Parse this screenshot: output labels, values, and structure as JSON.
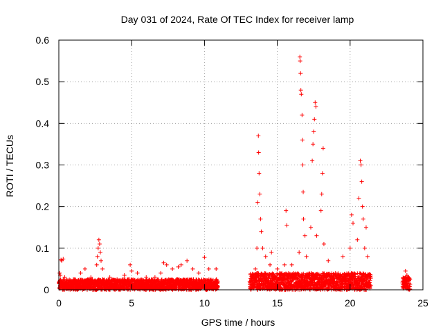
{
  "chart_data": {
    "type": "scatter",
    "title": "Day 031 of 2024, Rate Of TEC Index for receiver lamp",
    "xlabel": "GPS time / hours",
    "ylabel": "ROTI / TECUs",
    "xlim": [
      0,
      25
    ],
    "ylim": [
      0,
      0.6
    ],
    "xticks": [
      0,
      5,
      10,
      15,
      20,
      25
    ],
    "yticks": [
      0,
      0.1,
      0.2,
      0.3,
      0.4,
      0.5,
      0.6
    ],
    "xtick_labels": [
      "0",
      "5",
      "10",
      "15",
      "20",
      "25"
    ],
    "ytick_labels": [
      "0",
      "0.1",
      "0.2",
      "0.3",
      "0.4",
      "0.5",
      "0.6"
    ],
    "grid": true,
    "marker": "+",
    "color": "#ff0000",
    "series": [
      {
        "points": [
          [
            0.05,
            0.04
          ],
          [
            0.1,
            0.035
          ],
          [
            0.15,
            0.072
          ],
          [
            0.2,
            0.07
          ],
          [
            0.3,
            0.074
          ],
          [
            0.4,
            0.03
          ],
          [
            1.0,
            0.025
          ],
          [
            1.5,
            0.04
          ],
          [
            1.8,
            0.05
          ],
          [
            2.2,
            0.03
          ],
          [
            2.6,
            0.06
          ],
          [
            2.65,
            0.08
          ],
          [
            2.7,
            0.1
          ],
          [
            2.75,
            0.12
          ],
          [
            2.8,
            0.11
          ],
          [
            2.85,
            0.09
          ],
          [
            2.9,
            0.07
          ],
          [
            3.0,
            0.05
          ],
          [
            3.5,
            0.03
          ],
          [
            4.0,
            0.025
          ],
          [
            4.5,
            0.035
          ],
          [
            4.9,
            0.06
          ],
          [
            5.0,
            0.045
          ],
          [
            5.4,
            0.04
          ],
          [
            6.0,
            0.03
          ],
          [
            6.6,
            0.03
          ],
          [
            7.0,
            0.04
          ],
          [
            7.2,
            0.065
          ],
          [
            7.4,
            0.06
          ],
          [
            7.8,
            0.05
          ],
          [
            8.2,
            0.055
          ],
          [
            8.4,
            0.06
          ],
          [
            8.8,
            0.07
          ],
          [
            9.2,
            0.05
          ],
          [
            9.6,
            0.04
          ],
          [
            10.0,
            0.078
          ],
          [
            10.3,
            0.05
          ],
          [
            10.8,
            0.05
          ],
          [
            13.4,
            0.03
          ],
          [
            13.5,
            0.05
          ],
          [
            13.6,
            0.1
          ],
          [
            13.65,
            0.21
          ],
          [
            13.7,
            0.37
          ],
          [
            13.72,
            0.33
          ],
          [
            13.75,
            0.28
          ],
          [
            13.8,
            0.23
          ],
          [
            13.85,
            0.17
          ],
          [
            13.9,
            0.14
          ],
          [
            14.0,
            0.1
          ],
          [
            14.2,
            0.08
          ],
          [
            14.5,
            0.06
          ],
          [
            14.6,
            0.09
          ],
          [
            15.0,
            0.05
          ],
          [
            15.5,
            0.06
          ],
          [
            15.6,
            0.19
          ],
          [
            15.65,
            0.155
          ],
          [
            16.0,
            0.06
          ],
          [
            16.5,
            0.09
          ],
          [
            16.55,
            0.56
          ],
          [
            16.57,
            0.55
          ],
          [
            16.6,
            0.52
          ],
          [
            16.62,
            0.48
          ],
          [
            16.65,
            0.47
          ],
          [
            16.7,
            0.42
          ],
          [
            16.72,
            0.36
          ],
          [
            16.75,
            0.3
          ],
          [
            16.78,
            0.235
          ],
          [
            16.8,
            0.17
          ],
          [
            16.9,
            0.13
          ],
          [
            17.0,
            0.08
          ],
          [
            17.3,
            0.15
          ],
          [
            17.4,
            0.31
          ],
          [
            17.45,
            0.35
          ],
          [
            17.5,
            0.38
          ],
          [
            17.55,
            0.41
          ],
          [
            17.6,
            0.45
          ],
          [
            17.65,
            0.44
          ],
          [
            17.7,
            0.13
          ],
          [
            18.0,
            0.19
          ],
          [
            18.05,
            0.23
          ],
          [
            18.1,
            0.28
          ],
          [
            18.15,
            0.34
          ],
          [
            18.2,
            0.11
          ],
          [
            18.5,
            0.07
          ],
          [
            19.0,
            0.04
          ],
          [
            19.5,
            0.08
          ],
          [
            20.0,
            0.1
          ],
          [
            20.1,
            0.18
          ],
          [
            20.2,
            0.16
          ],
          [
            20.5,
            0.12
          ],
          [
            20.6,
            0.22
          ],
          [
            20.7,
            0.31
          ],
          [
            20.75,
            0.3
          ],
          [
            20.8,
            0.26
          ],
          [
            20.85,
            0.2
          ],
          [
            20.9,
            0.17
          ],
          [
            21.0,
            0.1
          ],
          [
            21.1,
            0.15
          ],
          [
            21.2,
            0.08
          ],
          [
            23.8,
            0.045
          ],
          [
            23.9,
            0.035
          ],
          [
            24.0,
            0.03
          ]
        ]
      }
    ],
    "bands": [
      {
        "x_start": 0.0,
        "x_end": 10.9,
        "y_max": 0.025
      },
      {
        "x_start": 13.1,
        "x_end": 21.4,
        "y_max": 0.04
      },
      {
        "x_start": 23.6,
        "x_end": 24.1,
        "y_max": 0.03
      }
    ]
  }
}
